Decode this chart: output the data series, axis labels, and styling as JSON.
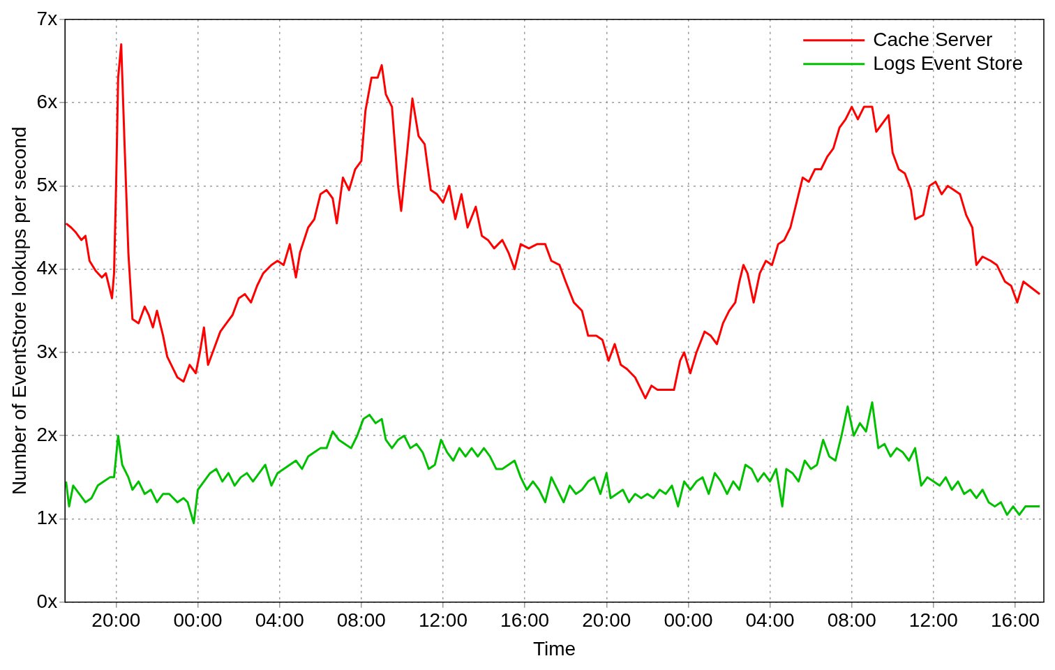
{
  "chart_data": {
    "type": "line",
    "xlabel": "Time",
    "ylabel": "Number of EventStore lookups per second",
    "xlim": [
      "2000-01-01T17:30",
      "2000-01-03T17:24"
    ],
    "xticks": [
      {
        "value": "2000-01-01T20:00",
        "label": "20:00"
      },
      {
        "value": "2000-01-02T00:00",
        "label": "00:00"
      },
      {
        "value": "2000-01-02T04:00",
        "label": "04:00"
      },
      {
        "value": "2000-01-02T08:00",
        "label": "08:00"
      },
      {
        "value": "2000-01-02T12:00",
        "label": "12:00"
      },
      {
        "value": "2000-01-02T16:00",
        "label": "16:00"
      },
      {
        "value": "2000-01-02T20:00",
        "label": "20:00"
      },
      {
        "value": "2000-01-03T00:00",
        "label": "00:00"
      },
      {
        "value": "2000-01-03T04:00",
        "label": "04:00"
      },
      {
        "value": "2000-01-03T08:00",
        "label": "08:00"
      },
      {
        "value": "2000-01-03T12:00",
        "label": "12:00"
      },
      {
        "value": "2000-01-03T16:00",
        "label": "16:00"
      }
    ],
    "ylim": [
      0,
      7
    ],
    "yticks": [
      {
        "value": 0,
        "label": "0x"
      },
      {
        "value": 1,
        "label": "1x"
      },
      {
        "value": 2,
        "label": "2x"
      },
      {
        "value": 3,
        "label": "3x"
      },
      {
        "value": 4,
        "label": "4x"
      },
      {
        "value": 5,
        "label": "5x"
      },
      {
        "value": 6,
        "label": "6x"
      },
      {
        "value": 7,
        "label": "7x"
      }
    ],
    "grid": true,
    "legend": "top right",
    "marker": "none",
    "line_style": "solid",
    "series": [
      {
        "name": "Cache Server",
        "color": "#ff0000",
        "x": [
          "2000-01-01T17:33",
          "2000-01-01T17:48",
          "2000-01-01T18:00",
          "2000-01-01T18:18",
          "2000-01-01T18:30",
          "2000-01-01T18:42",
          "2000-01-01T19:00",
          "2000-01-01T19:18",
          "2000-01-01T19:30",
          "2000-01-01T19:48",
          "2000-01-01T19:54",
          "2000-01-01T20:00",
          "2000-01-01T20:06",
          "2000-01-01T20:15",
          "2000-01-01T20:24",
          "2000-01-01T20:36",
          "2000-01-01T20:48",
          "2000-01-01T21:06",
          "2000-01-01T21:24",
          "2000-01-01T21:36",
          "2000-01-01T21:48",
          "2000-01-01T22:00",
          "2000-01-01T22:18",
          "2000-01-01T22:30",
          "2000-01-01T22:48",
          "2000-01-01T23:00",
          "2000-01-01T23:18",
          "2000-01-01T23:36",
          "2000-01-01T23:54",
          "2000-01-02T00:06",
          "2000-01-02T00:18",
          "2000-01-02T00:30",
          "2000-01-02T00:48",
          "2000-01-02T01:06",
          "2000-01-02T01:24",
          "2000-01-02T01:42",
          "2000-01-02T02:00",
          "2000-01-02T02:18",
          "2000-01-02T02:36",
          "2000-01-02T02:54",
          "2000-01-02T03:12",
          "2000-01-02T03:36",
          "2000-01-02T03:54",
          "2000-01-02T04:12",
          "2000-01-02T04:30",
          "2000-01-02T04:48",
          "2000-01-02T05:00",
          "2000-01-02T05:24",
          "2000-01-02T05:42",
          "2000-01-02T06:00",
          "2000-01-02T06:18",
          "2000-01-02T06:36",
          "2000-01-02T06:48",
          "2000-01-02T07:06",
          "2000-01-02T07:24",
          "2000-01-02T07:42",
          "2000-01-02T08:00",
          "2000-01-02T08:12",
          "2000-01-02T08:30",
          "2000-01-02T08:48",
          "2000-01-02T09:00",
          "2000-01-02T09:12",
          "2000-01-02T09:30",
          "2000-01-02T09:48",
          "2000-01-02T09:57",
          "2000-01-02T10:12",
          "2000-01-02T10:30",
          "2000-01-02T10:48",
          "2000-01-02T11:06",
          "2000-01-02T11:24",
          "2000-01-02T11:42",
          "2000-01-02T12:00",
          "2000-01-02T12:18",
          "2000-01-02T12:36",
          "2000-01-02T12:54",
          "2000-01-02T13:12",
          "2000-01-02T13:36",
          "2000-01-02T13:54",
          "2000-01-02T14:12",
          "2000-01-02T14:30",
          "2000-01-02T14:54",
          "2000-01-02T15:12",
          "2000-01-02T15:30",
          "2000-01-02T15:48",
          "2000-01-02T16:12",
          "2000-01-02T16:36",
          "2000-01-02T17:00",
          "2000-01-02T17:18",
          "2000-01-02T17:42",
          "2000-01-02T18:00",
          "2000-01-02T18:24",
          "2000-01-02T18:48",
          "2000-01-02T19:06",
          "2000-01-02T19:30",
          "2000-01-02T19:48",
          "2000-01-02T20:06",
          "2000-01-02T20:24",
          "2000-01-02T20:42",
          "2000-01-02T21:00",
          "2000-01-02T21:24",
          "2000-01-02T21:42",
          "2000-01-02T21:54",
          "2000-01-02T22:12",
          "2000-01-02T22:30",
          "2000-01-02T22:54",
          "2000-01-02T23:18",
          "2000-01-02T23:36",
          "2000-01-02T23:48",
          "2000-01-03T00:06",
          "2000-01-03T00:24",
          "2000-01-03T00:48",
          "2000-01-03T01:06",
          "2000-01-03T01:24",
          "2000-01-03T01:42",
          "2000-01-03T02:00",
          "2000-01-03T02:18",
          "2000-01-03T02:30",
          "2000-01-03T02:42",
          "2000-01-03T02:54",
          "2000-01-03T03:12",
          "2000-01-03T03:30",
          "2000-01-03T03:48",
          "2000-01-03T04:06",
          "2000-01-03T04:24",
          "2000-01-03T04:42",
          "2000-01-03T05:00",
          "2000-01-03T05:18",
          "2000-01-03T05:36",
          "2000-01-03T05:54",
          "2000-01-03T06:12",
          "2000-01-03T06:30",
          "2000-01-03T06:48",
          "2000-01-03T07:06",
          "2000-01-03T07:24",
          "2000-01-03T07:42",
          "2000-01-03T08:00",
          "2000-01-03T08:18",
          "2000-01-03T08:36",
          "2000-01-03T09:00",
          "2000-01-03T09:12",
          "2000-01-03T09:30",
          "2000-01-03T09:48",
          "2000-01-03T10:00",
          "2000-01-03T10:18",
          "2000-01-03T10:36",
          "2000-01-03T10:54",
          "2000-01-03T11:06",
          "2000-01-03T11:30",
          "2000-01-03T11:48",
          "2000-01-03T12:06",
          "2000-01-03T12:24",
          "2000-01-03T12:42",
          "2000-01-03T13:00",
          "2000-01-03T13:18",
          "2000-01-03T13:36",
          "2000-01-03T13:54",
          "2000-01-03T14:06",
          "2000-01-03T14:24",
          "2000-01-03T14:48",
          "2000-01-03T15:06",
          "2000-01-03T15:30",
          "2000-01-03T15:48",
          "2000-01-03T16:06",
          "2000-01-03T16:24",
          "2000-01-03T17:12"
        ],
        "values": [
          4.55,
          4.5,
          4.45,
          4.35,
          4.4,
          4.1,
          3.98,
          3.9,
          3.95,
          3.65,
          3.95,
          5.0,
          6.3,
          6.7,
          5.6,
          4.2,
          3.4,
          3.35,
          3.55,
          3.45,
          3.3,
          3.5,
          3.2,
          2.95,
          2.8,
          2.7,
          2.65,
          2.85,
          2.75,
          3.0,
          3.3,
          2.85,
          3.05,
          3.25,
          3.35,
          3.45,
          3.65,
          3.7,
          3.6,
          3.8,
          3.95,
          4.05,
          4.1,
          4.05,
          4.3,
          3.9,
          4.2,
          4.5,
          4.6,
          4.9,
          4.95,
          4.85,
          4.55,
          5.1,
          4.95,
          5.2,
          5.3,
          5.9,
          6.3,
          6.3,
          6.45,
          6.1,
          5.95,
          5.0,
          4.7,
          5.3,
          6.05,
          5.6,
          5.5,
          4.95,
          4.9,
          4.8,
          5.0,
          4.6,
          4.9,
          4.5,
          4.75,
          4.4,
          4.35,
          4.25,
          4.35,
          4.2,
          4.0,
          4.3,
          4.25,
          4.3,
          4.3,
          4.1,
          4.05,
          3.85,
          3.6,
          3.5,
          3.2,
          3.2,
          3.15,
          2.9,
          3.1,
          2.85,
          2.8,
          2.7,
          2.55,
          2.45,
          2.6,
          2.55,
          2.55,
          2.55,
          2.9,
          3.0,
          2.75,
          3.0,
          3.25,
          3.2,
          3.1,
          3.35,
          3.5,
          3.6,
          3.85,
          4.05,
          3.95,
          3.6,
          3.95,
          4.1,
          4.05,
          4.3,
          4.35,
          4.5,
          4.8,
          5.1,
          5.05,
          5.2,
          5.2,
          5.35,
          5.45,
          5.7,
          5.8,
          5.95,
          5.8,
          5.95,
          5.95,
          5.65,
          5.75,
          5.85,
          5.4,
          5.2,
          5.15,
          4.95,
          4.6,
          4.65,
          5.0,
          5.05,
          4.9,
          5.0,
          4.95,
          4.9,
          4.65,
          4.5,
          4.05,
          4.15,
          4.1,
          4.05,
          3.85,
          3.8,
          3.6,
          3.85,
          3.7
        ]
      },
      {
        "name": "Logs Event Store",
        "color": "#00c000",
        "x": [
          "2000-01-01T17:33",
          "2000-01-01T17:42",
          "2000-01-01T17:54",
          "2000-01-01T18:12",
          "2000-01-01T18:30",
          "2000-01-01T18:48",
          "2000-01-01T19:06",
          "2000-01-01T19:24",
          "2000-01-01T19:42",
          "2000-01-01T19:54",
          "2000-01-01T20:06",
          "2000-01-01T20:18",
          "2000-01-01T20:36",
          "2000-01-01T20:48",
          "2000-01-01T21:06",
          "2000-01-01T21:24",
          "2000-01-01T21:42",
          "2000-01-01T22:00",
          "2000-01-01T22:18",
          "2000-01-01T22:36",
          "2000-01-01T23:00",
          "2000-01-01T23:18",
          "2000-01-01T23:30",
          "2000-01-01T23:48",
          "2000-01-02T00:00",
          "2000-01-02T00:18",
          "2000-01-02T00:36",
          "2000-01-02T00:54",
          "2000-01-02T01:12",
          "2000-01-02T01:30",
          "2000-01-02T01:48",
          "2000-01-02T02:06",
          "2000-01-02T02:24",
          "2000-01-02T02:42",
          "2000-01-02T03:00",
          "2000-01-02T03:18",
          "2000-01-02T03:36",
          "2000-01-02T03:54",
          "2000-01-02T04:12",
          "2000-01-02T04:30",
          "2000-01-02T04:48",
          "2000-01-02T05:06",
          "2000-01-02T05:24",
          "2000-01-02T05:42",
          "2000-01-02T06:00",
          "2000-01-02T06:18",
          "2000-01-02T06:36",
          "2000-01-02T06:54",
          "2000-01-02T07:12",
          "2000-01-02T07:30",
          "2000-01-02T07:48",
          "2000-01-02T08:06",
          "2000-01-02T08:24",
          "2000-01-02T08:42",
          "2000-01-02T09:00",
          "2000-01-02T09:12",
          "2000-01-02T09:30",
          "2000-01-02T09:48",
          "2000-01-02T10:06",
          "2000-01-02T10:24",
          "2000-01-02T10:42",
          "2000-01-02T11:00",
          "2000-01-02T11:18",
          "2000-01-02T11:36",
          "2000-01-02T11:54",
          "2000-01-02T12:12",
          "2000-01-02T12:30",
          "2000-01-02T12:48",
          "2000-01-02T13:06",
          "2000-01-02T13:24",
          "2000-01-02T13:42",
          "2000-01-02T14:00",
          "2000-01-02T14:18",
          "2000-01-02T14:36",
          "2000-01-02T14:54",
          "2000-01-02T15:12",
          "2000-01-02T15:30",
          "2000-01-02T15:48",
          "2000-01-02T16:06",
          "2000-01-02T16:24",
          "2000-01-02T16:42",
          "2000-01-02T17:00",
          "2000-01-02T17:18",
          "2000-01-02T17:36",
          "2000-01-02T17:54",
          "2000-01-02T18:12",
          "2000-01-02T18:30",
          "2000-01-02T18:48",
          "2000-01-02T19:06",
          "2000-01-02T19:24",
          "2000-01-02T19:42",
          "2000-01-02T20:00",
          "2000-01-02T20:12",
          "2000-01-02T20:30",
          "2000-01-02T20:48",
          "2000-01-02T21:06",
          "2000-01-02T21:24",
          "2000-01-02T21:42",
          "2000-01-02T22:00",
          "2000-01-02T22:18",
          "2000-01-02T22:36",
          "2000-01-02T22:54",
          "2000-01-02T23:12",
          "2000-01-02T23:30",
          "2000-01-02T23:48",
          "2000-01-03T00:06",
          "2000-01-03T00:24",
          "2000-01-03T00:42",
          "2000-01-03T01:00",
          "2000-01-03T01:18",
          "2000-01-03T01:36",
          "2000-01-03T01:54",
          "2000-01-03T02:12",
          "2000-01-03T02:30",
          "2000-01-03T02:48",
          "2000-01-03T03:06",
          "2000-01-03T03:24",
          "2000-01-03T03:42",
          "2000-01-03T04:00",
          "2000-01-03T04:18",
          "2000-01-03T04:36",
          "2000-01-03T04:48",
          "2000-01-03T05:06",
          "2000-01-03T05:24",
          "2000-01-03T05:42",
          "2000-01-03T06:00",
          "2000-01-03T06:18",
          "2000-01-03T06:36",
          "2000-01-03T06:54",
          "2000-01-03T07:12",
          "2000-01-03T07:30",
          "2000-01-03T07:48",
          "2000-01-03T08:06",
          "2000-01-03T08:24",
          "2000-01-03T08:42",
          "2000-01-03T09:00",
          "2000-01-03T09:18",
          "2000-01-03T09:36",
          "2000-01-03T09:54",
          "2000-01-03T10:12",
          "2000-01-03T10:30",
          "2000-01-03T10:48",
          "2000-01-03T11:06",
          "2000-01-03T11:24",
          "2000-01-03T11:42",
          "2000-01-03T12:00",
          "2000-01-03T12:18",
          "2000-01-03T12:36",
          "2000-01-03T12:54",
          "2000-01-03T13:12",
          "2000-01-03T13:30",
          "2000-01-03T13:48",
          "2000-01-03T14:06",
          "2000-01-03T14:24",
          "2000-01-03T14:42",
          "2000-01-03T15:00",
          "2000-01-03T15:18",
          "2000-01-03T15:36",
          "2000-01-03T15:54",
          "2000-01-03T16:12",
          "2000-01-03T16:30",
          "2000-01-03T17:12"
        ],
        "values": [
          1.45,
          1.15,
          1.4,
          1.3,
          1.2,
          1.25,
          1.4,
          1.45,
          1.5,
          1.5,
          2.0,
          1.65,
          1.5,
          1.35,
          1.45,
          1.3,
          1.35,
          1.2,
          1.3,
          1.3,
          1.2,
          1.25,
          1.2,
          0.95,
          1.35,
          1.45,
          1.55,
          1.6,
          1.45,
          1.55,
          1.4,
          1.5,
          1.55,
          1.45,
          1.55,
          1.65,
          1.4,
          1.55,
          1.6,
          1.65,
          1.7,
          1.6,
          1.75,
          1.8,
          1.85,
          1.85,
          2.05,
          1.95,
          1.9,
          1.85,
          2.0,
          2.2,
          2.25,
          2.15,
          2.2,
          1.95,
          1.85,
          1.95,
          2.0,
          1.85,
          1.9,
          1.8,
          1.6,
          1.65,
          1.95,
          1.8,
          1.7,
          1.85,
          1.75,
          1.85,
          1.75,
          1.85,
          1.75,
          1.6,
          1.6,
          1.65,
          1.7,
          1.5,
          1.35,
          1.45,
          1.35,
          1.2,
          1.5,
          1.35,
          1.2,
          1.4,
          1.3,
          1.35,
          1.45,
          1.5,
          1.3,
          1.55,
          1.25,
          1.3,
          1.35,
          1.2,
          1.3,
          1.25,
          1.3,
          1.25,
          1.35,
          1.3,
          1.4,
          1.15,
          1.45,
          1.35,
          1.45,
          1.5,
          1.3,
          1.55,
          1.45,
          1.3,
          1.45,
          1.35,
          1.65,
          1.6,
          1.45,
          1.55,
          1.45,
          1.6,
          1.15,
          1.6,
          1.55,
          1.45,
          1.7,
          1.6,
          1.65,
          1.95,
          1.75,
          1.7,
          2.0,
          2.35,
          2.0,
          2.15,
          2.05,
          2.4,
          1.85,
          1.9,
          1.75,
          1.85,
          1.8,
          1.7,
          1.85,
          1.4,
          1.5,
          1.45,
          1.4,
          1.5,
          1.35,
          1.45,
          1.3,
          1.35,
          1.25,
          1.35,
          1.2,
          1.15,
          1.2,
          1.05,
          1.15,
          1.05,
          1.15,
          1.15
        ]
      }
    ]
  }
}
